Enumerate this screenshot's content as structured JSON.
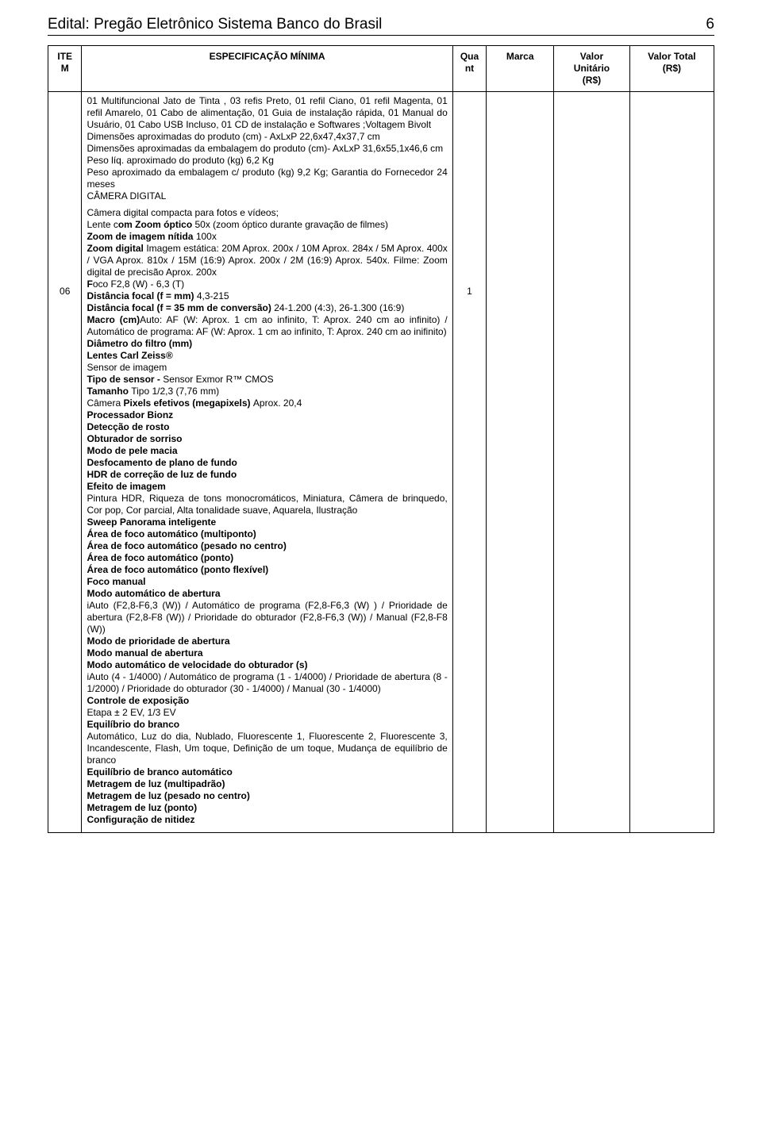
{
  "header": {
    "title": "Edital: Pregão Eletrônico Sistema Banco do Brasil",
    "page_number": "6"
  },
  "columns": {
    "item": "ITE\nM",
    "spec": "ESPECIFICAÇÃO MÍNIMA",
    "qua": "Qua\nnt",
    "marca": "Marca",
    "unit": "Valor\nUnitário\n(R$)",
    "total": "Valor Total\n(R$)"
  },
  "row": {
    "item_number": "06",
    "qua_value": "1",
    "marca": "",
    "unit": "",
    "total": ""
  },
  "spec_top": {
    "p1": "01 Multifuncional Jato de Tinta , 03 refis Preto, 01 refil Ciano, 01 refil Magenta, 01 refil Amarelo, 01 Cabo de alimentação, 01 Guia de instalação rápida, 01 Manual do Usuário, 01 Cabo USB Incluso, 01 CD de instalação e Softwares ;Voltagem Bivolt",
    "p2": "Dimensões aproximadas do produto (cm) - AxLxP 22,6x47,4x37,7 cm",
    "p3": "Dimensões aproximadas da embalagem do produto (cm)- AxLxP  31,6x55,1x46,6 cm",
    "p4": "Peso líq. aproximado do produto (kg) 6,2 Kg",
    "p5": "Peso aproximado da embalagem c/ produto (kg) 9,2 Kg; Garantia do Fornecedor 24 meses",
    "p6": "CÂMERA DIGITAL"
  },
  "spec_cam": {
    "l01": "Câmera digital compacta para fotos e vídeos;",
    "l02a": "Lente c",
    "l02b": "om Zoom óptico ",
    "l02c": "50x (zoom óptico durante gravação de filmes)",
    "l03a": "Zoom de imagem nítida ",
    "l03b": "100x",
    "l04a": "Zoom digital ",
    "l04b": "Imagem estática: 20M Aprox. 200x / 10M Aprox. 284x / 5M Aprox. 400x / VGA Aprox. 810x / 15M (16:9) Aprox. 200x / 2M (16:9) Aprox. 540x. Filme: Zoom digital de precisão Aprox. 200x",
    "l05a": "F",
    "l05b": "oco F2,8 (W) - 6,3 (T)",
    "l06a": "Distância focal (f = mm) ",
    "l06b": "4,3-215",
    "l07a": "Distância focal (f = 35 mm de conversão) ",
    "l07b": "24-1.200 (4:3), 26-1.300 (16:9)",
    "l08a": "Macro (cm)",
    "l08b": "Auto: AF (W: Aprox. 1 cm ao infinito, T: Aprox. 240 cm ao infinito) / Automático de programa: AF (W: Aprox. 1 cm ao infinito, T: Aprox. 240 cm ao inifinito)",
    "l09": "Diâmetro do filtro (mm)",
    "l10": "Lentes Carl Zeiss®",
    "l11": "Sensor de imagem",
    "l12a": "Tipo de sensor - ",
    "l12b": "Sensor Exmor R™ CMOS",
    "l13a": "Tamanho ",
    "l13b": "Tipo 1/2,3 (7,76 mm)",
    "l14a": "Câmera ",
    "l14b": "Pixels efetivos (megapixels) ",
    "l14c": "Aprox. 20,4",
    "l15": "Processador Bionz",
    "l16": "Detecção de rosto",
    "l17": "Obturador de sorriso",
    "l18": "Modo de pele macia",
    "l19": "Desfocamento de plano de fundo",
    "l20": "HDR de correção de luz de fundo",
    "l21": "Efeito de imagem",
    "l22": "Pintura HDR, Riqueza de tons monocromáticos, Miniatura, Câmera de brinquedo, Cor pop, Cor parcial, Alta tonalidade suave, Aquarela, Ilustração",
    "l23": "Sweep Panorama inteligente",
    "l24": "Área de foco automático (multiponto)",
    "l25": "Área de foco automático (pesado no centro)",
    "l26": "Área de foco automático (ponto)",
    "l27": "Área de foco automático (ponto flexível)",
    "l28": "Foco manual",
    "l29": "Modo automático de abertura",
    "l30": "iAuto (F2,8-F6,3 (W)) / Automático de programa (F2,8-F6,3 (W) ) / Prioridade de abertura (F2,8-F8 (W)) / Prioridade do obturador (F2,8-F6,3 (W)) / Manual (F2,8-F8 (W))",
    "l31": "Modo de prioridade de abertura",
    "l32": "Modo manual de abertura",
    "l33": "Modo automático de velocidade do obturador (s)",
    "l34": "iAuto (4 - 1/4000) / Automático de programa (1 - 1/4000) / Prioridade de abertura (8 - 1/2000) / Prioridade do obturador (30 - 1/4000) / Manual (30 - 1/4000)",
    "l35": "Controle de exposição",
    "l36": "Etapa ± 2 EV, 1/3 EV",
    "l37": "Equilíbrio do branco",
    "l38": "Automático, Luz do dia, Nublado, Fluorescente 1, Fluorescente 2, Fluorescente 3, Incandescente, Flash, Um toque, Definição de um toque, Mudança de equilíbrio de branco",
    "l39": "Equilíbrio de branco automático",
    "l40": "Metragem de luz (multipadrão)",
    "l41": "Metragem de luz (pesado no centro)",
    "l42": "Metragem de luz (ponto)",
    "l43": "Configuração de nitidez"
  }
}
